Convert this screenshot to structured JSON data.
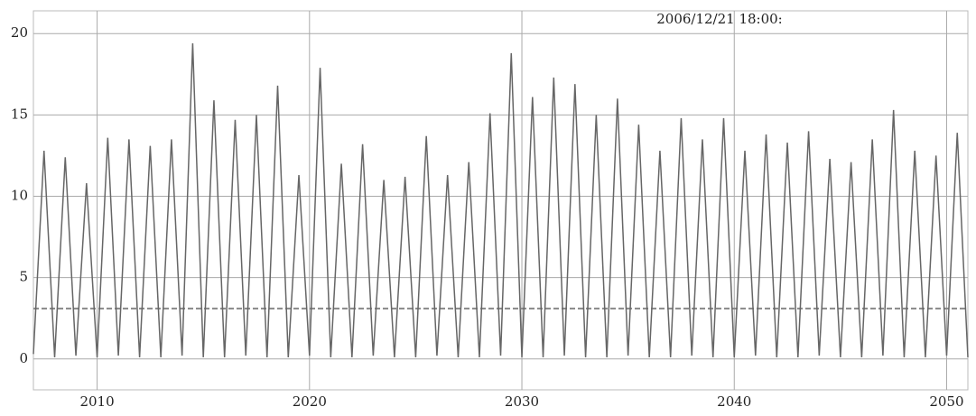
{
  "chart_data": {
    "type": "line",
    "annotation": "2006/12/21 18:00:",
    "x": [
      2007,
      2007.5,
      2008,
      2008.5,
      2009,
      2009.5,
      2010,
      2010.5,
      2011,
      2011.5,
      2012,
      2012.5,
      2013,
      2013.5,
      2014,
      2014.5,
      2015,
      2015.5,
      2016,
      2016.5,
      2017,
      2017.5,
      2018,
      2018.5,
      2019,
      2019.5,
      2020,
      2020.5,
      2021,
      2021.5,
      2022,
      2022.5,
      2023,
      2023.5,
      2024,
      2024.5,
      2025,
      2025.5,
      2026,
      2026.5,
      2027,
      2027.5,
      2028,
      2028.5,
      2029,
      2029.5,
      2030,
      2030.5,
      2031,
      2031.5,
      2032,
      2032.5,
      2033,
      2033.5,
      2034,
      2034.5,
      2035,
      2035.5,
      2036,
      2036.5,
      2037,
      2037.5,
      2038,
      2038.5,
      2039,
      2039.5,
      2040,
      2040.5,
      2041,
      2041.5,
      2042,
      2042.5,
      2043,
      2043.5,
      2044,
      2044.5,
      2045,
      2045.5,
      2046,
      2046.5,
      2047,
      2047.5,
      2048,
      2048.5,
      2049,
      2049.5,
      2050,
      2050.5,
      2051
    ],
    "series": [
      {
        "color": "#666666",
        "values": [
          0.3,
          12.8,
          0.1,
          12.4,
          0.2,
          10.8,
          0.1,
          13.6,
          0.2,
          13.5,
          0.1,
          13.1,
          0.1,
          13.5,
          0.2,
          19.4,
          0.1,
          15.9,
          0.1,
          14.7,
          0.2,
          15.0,
          0.1,
          16.8,
          0.1,
          11.3,
          0.2,
          17.9,
          0.1,
          12.0,
          0.1,
          13.2,
          0.2,
          11.0,
          0.1,
          11.2,
          0.1,
          13.7,
          0.2,
          11.3,
          0.1,
          12.1,
          0.1,
          15.1,
          0.2,
          18.8,
          0.1,
          16.1,
          0.1,
          17.3,
          0.2,
          16.9,
          0.1,
          15.0,
          0.1,
          16.0,
          0.2,
          14.4,
          0.1,
          12.8,
          0.1,
          14.8,
          0.2,
          13.5,
          0.1,
          14.8,
          0.1,
          12.8,
          0.2,
          13.8,
          0.1,
          13.3,
          0.1,
          14.0,
          0.2,
          12.3,
          0.1,
          12.1,
          0.1,
          13.5,
          0.2,
          15.3,
          0.1,
          12.8,
          0.1,
          12.5,
          0.2,
          13.9,
          0.1
        ]
      }
    ],
    "hlines": [
      3.1
    ],
    "xlim": [
      2007,
      2051
    ],
    "xticks": [
      2010,
      2020,
      2030,
      2040,
      2050
    ],
    "ylim": [
      -1.9,
      21.4
    ],
    "yticks": [
      0,
      5,
      10,
      15,
      20
    ],
    "grid": true
  }
}
